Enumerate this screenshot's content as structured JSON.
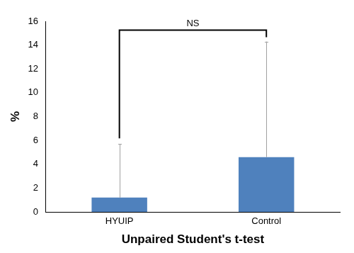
{
  "chart_data": {
    "type": "bar",
    "x_label": "Unpaired Student's t-test",
    "y_label": "%",
    "categories": [
      "HYUIP",
      "Control"
    ],
    "values": [
      1.2,
      4.6
    ],
    "errors": [
      4.5,
      9.7
    ],
    "color": "#4f81bd",
    "ylim": [
      0,
      16
    ],
    "yticks": [
      0,
      2,
      4,
      6,
      8,
      10,
      12,
      14,
      16
    ],
    "grid": false,
    "annotations": [
      {
        "text": "NS"
      }
    ]
  }
}
